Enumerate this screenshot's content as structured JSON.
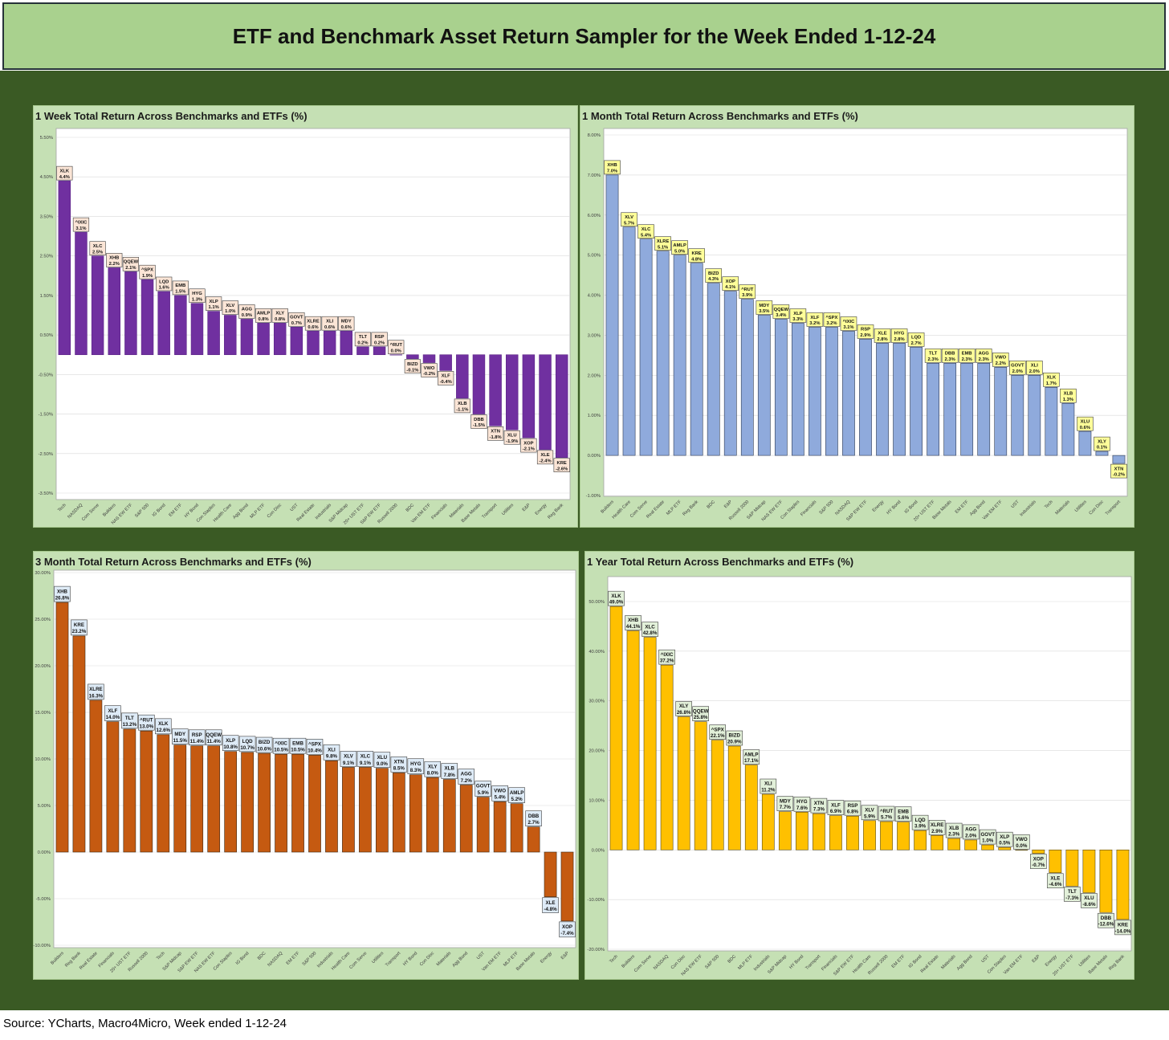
{
  "header": {
    "title": "ETF and Benchmark Asset Return Sampler for the Week Ended 1-12-24"
  },
  "footer": {
    "source": "Source: YCharts, Macro4Micro, Week ended 1-12-24"
  },
  "colors": {
    "header_fill": "#a9d18e",
    "background": "#3a5a24",
    "panel_fill": "#c5e0b4"
  },
  "chart_data": [
    {
      "type": "bar",
      "title": "1 Week Total Return Across Benchmarks and ETFs (%)",
      "categories": [
        "Tech",
        "NASDAQ",
        "Com Serve",
        "Builders",
        "NAS EW ETF",
        "S&P 500",
        "IG Bond",
        "EM ETF",
        "HY Bond",
        "Con Staples",
        "Health Care",
        "Agg Bond",
        "MLP ETF",
        "Con Disc",
        "UST",
        "Real Estate",
        "Industrials",
        "S&P Midcap",
        "20+ UST ETF",
        "S&P EW ETF",
        "Russell 2000",
        "BDC",
        "Van EM ETF",
        "Financials",
        "Materials",
        "Base Metals",
        "Transport",
        "Utilities",
        "E&P",
        "Energy",
        "Reg Bank"
      ],
      "tickers": [
        "XLK",
        "^IXIC",
        "XLC",
        "XHB",
        "QQEW",
        "^SPX",
        "LQD",
        "EMB",
        "HYG",
        "XLP",
        "XLV",
        "AGG",
        "AMLP",
        "XLY",
        "GOVT",
        "XLRE",
        "XLI",
        "MDY",
        "TLT",
        "RSP",
        "^RUT",
        "BIZD",
        "VWO",
        "XLF",
        "XLB",
        "DBB",
        "XTN",
        "XLU",
        "XOP",
        "XLE",
        "KRE"
      ],
      "values": [
        4.4,
        3.1,
        2.5,
        2.2,
        2.1,
        1.9,
        1.6,
        1.5,
        1.3,
        1.1,
        1.0,
        0.9,
        0.8,
        0.8,
        0.7,
        0.6,
        0.6,
        0.6,
        0.2,
        0.2,
        0.0,
        -0.1,
        -0.2,
        -0.4,
        -1.1,
        -1.5,
        -1.8,
        -1.9,
        -2.1,
        -2.4,
        -2.6
      ],
      "yticks": [
        "5.50%",
        "4.50%",
        "3.50%",
        "2.50%",
        "1.50%",
        "0.50%",
        "-0.50%",
        "-1.50%",
        "-2.50%",
        "-3.50%"
      ],
      "ylim": [
        -3.5,
        5.5
      ],
      "grid": true,
      "bar_color": "#7030a0",
      "bar_outline": "#5a2585",
      "label_fill": "#fbe5d6"
    },
    {
      "type": "bar",
      "title": "1 Month Total Return Across Benchmarks and ETFs (%)",
      "categories": [
        "Builders",
        "Health Care",
        "Com Serve",
        "Real Estate",
        "MLP ETF",
        "Reg Bank",
        "BDC",
        "E&P",
        "Russell 2000",
        "S&P Midcap",
        "NAS EW ETF",
        "Con Staples",
        "Financials",
        "S&P 500",
        "NASDAQ",
        "S&P EW ETF",
        "Energy",
        "HY Bond",
        "IG Bond",
        "20+ UST ETF",
        "Base Metals",
        "EM ETF",
        "Agg Bond",
        "Van EM ETF",
        "UST",
        "Industrials",
        "Tech",
        "Materials",
        "Utilities",
        "Con Disc",
        "Transport"
      ],
      "tickers": [
        "XHB",
        "XLV",
        "XLC",
        "XLRE",
        "AMLP",
        "KRE",
        "BIZD",
        "XOP",
        "^RUT",
        "MDY",
        "QQEW",
        "XLP",
        "XLF",
        "^SPX",
        "^IXIC",
        "RSP",
        "XLE",
        "HYG",
        "LQD",
        "TLT",
        "DBB",
        "EMB",
        "AGG",
        "VWO",
        "GOVT",
        "XLI",
        "XLK",
        "XLB",
        "XLU",
        "XLY",
        "XTN"
      ],
      "values": [
        7.0,
        5.7,
        5.4,
        5.1,
        5.0,
        4.8,
        4.3,
        4.1,
        3.9,
        3.5,
        3.4,
        3.3,
        3.2,
        3.2,
        3.1,
        2.9,
        2.8,
        2.8,
        2.7,
        2.3,
        2.3,
        2.3,
        2.3,
        2.2,
        2.0,
        2.0,
        1.7,
        1.3,
        0.6,
        0.1,
        -0.2
      ],
      "yticks": [
        "8.00%",
        "7.00%",
        "6.00%",
        "5.00%",
        "4.00%",
        "3.00%",
        "2.00%",
        "1.00%",
        "0.00%",
        "-1.00%"
      ],
      "ylim": [
        -1,
        8
      ],
      "grid": true,
      "bar_color": "#8faadc",
      "bar_outline": "#2f3b52",
      "label_fill": "#ffff99"
    },
    {
      "type": "bar",
      "title": "3 Month Total Return Across Benchmarks and ETFs (%)",
      "categories": [
        "Builders",
        "Reg Bank",
        "Real Estate",
        "Financials",
        "20+ UST ETF",
        "Russell 2000",
        "Tech",
        "S&P Midcap",
        "S&P EW ETF",
        "NAS EW ETF",
        "Con Staples",
        "IG Bond",
        "BDC",
        "NASDAQ",
        "EM ETF",
        "S&P 500",
        "Industrials",
        "Health Care",
        "Com Serve",
        "Utilities",
        "Transport",
        "HY Bond",
        "Con Disc",
        "Materials",
        "Agg Bond",
        "UST",
        "Van EM ETF",
        "MLP ETF",
        "Base Metals",
        "Energy",
        "E&P"
      ],
      "tickers": [
        "XHB",
        "KRE",
        "XLRE",
        "XLF",
        "TLT",
        "^RUT",
        "XLK",
        "MDY",
        "RSP",
        "QQEW",
        "XLP",
        "LQD",
        "BIZD",
        "^IXIC",
        "EMB",
        "^SPX",
        "XLI",
        "XLV",
        "XLC",
        "XLU",
        "XTN",
        "HYG",
        "XLY",
        "XLB",
        "AGG",
        "GOVT",
        "VWO",
        "AMLP",
        "DBB",
        "XLE",
        "XOP"
      ],
      "values": [
        26.8,
        23.2,
        16.3,
        14.0,
        13.2,
        13.0,
        12.6,
        11.5,
        11.4,
        11.4,
        10.8,
        10.7,
        10.6,
        10.5,
        10.5,
        10.4,
        9.8,
        9.1,
        9.1,
        9.0,
        8.5,
        8.3,
        8.0,
        7.8,
        7.2,
        5.9,
        5.4,
        5.2,
        2.7,
        -4.8,
        -7.4
      ],
      "yticks": [
        "30.00%",
        "25.00%",
        "20.00%",
        "15.00%",
        "10.00%",
        "5.00%",
        "0.00%",
        "-5.00%",
        "-10.00%"
      ],
      "ylim": [
        -10,
        30
      ],
      "grid": true,
      "bar_color": "#c55a11",
      "bar_outline": "#3a2a1a",
      "label_fill": "#deebf7"
    },
    {
      "type": "bar",
      "title": "1 Year Total Return Across Benchmarks and ETFs (%)",
      "categories": [
        "Tech",
        "Builders",
        "Com Serve",
        "NASDAQ",
        "Con Disc",
        "NAS EW ETF",
        "S&P 500",
        "BDC",
        "MLP ETF",
        "Industrials",
        "S&P Midcap",
        "HY Bond",
        "Transport",
        "Financials",
        "S&P EW ETF",
        "Health Care",
        "Russell 2000",
        "EM ETF",
        "IG Bond",
        "Real Estate",
        "Materials",
        "Agg Bond",
        "UST",
        "Con Staples",
        "Van EM ETF",
        "E&P",
        "Energy",
        "20+ UST ETF",
        "Utilities",
        "Base Metals",
        "Reg Bank"
      ],
      "tickers": [
        "XLK",
        "XHB",
        "XLC",
        "^IXIC",
        "XLY",
        "QQEW",
        "^SPX",
        "BIZD",
        "AMLP",
        "XLI",
        "MDY",
        "HYG",
        "XTN",
        "XLF",
        "RSP",
        "XLV",
        "^RUT",
        "EMB",
        "LQD",
        "XLRE",
        "XLB",
        "AGG",
        "GOVT",
        "XLP",
        "VWO",
        "XOP",
        "XLE",
        "TLT",
        "XLU",
        "DBB",
        "KRE"
      ],
      "values": [
        49.0,
        44.1,
        42.8,
        37.2,
        26.8,
        25.8,
        22.1,
        20.9,
        17.1,
        11.2,
        7.7,
        7.6,
        7.3,
        6.9,
        6.8,
        5.9,
        5.7,
        5.6,
        3.9,
        2.9,
        2.3,
        2.0,
        1.0,
        0.5,
        0.0,
        -0.7,
        -4.6,
        -7.3,
        -8.6,
        -12.6,
        -14.0
      ],
      "yticks": [
        "50.00%",
        "40.00%",
        "30.00%",
        "20.00%",
        "10.00%",
        "0.00%",
        "-10.00%",
        "-20.00%"
      ],
      "ylim": [
        -20,
        50
      ],
      "grid": true,
      "bar_color": "#ffc000",
      "bar_outline": "#5a4a10",
      "label_fill": "#e2f0d9"
    }
  ]
}
